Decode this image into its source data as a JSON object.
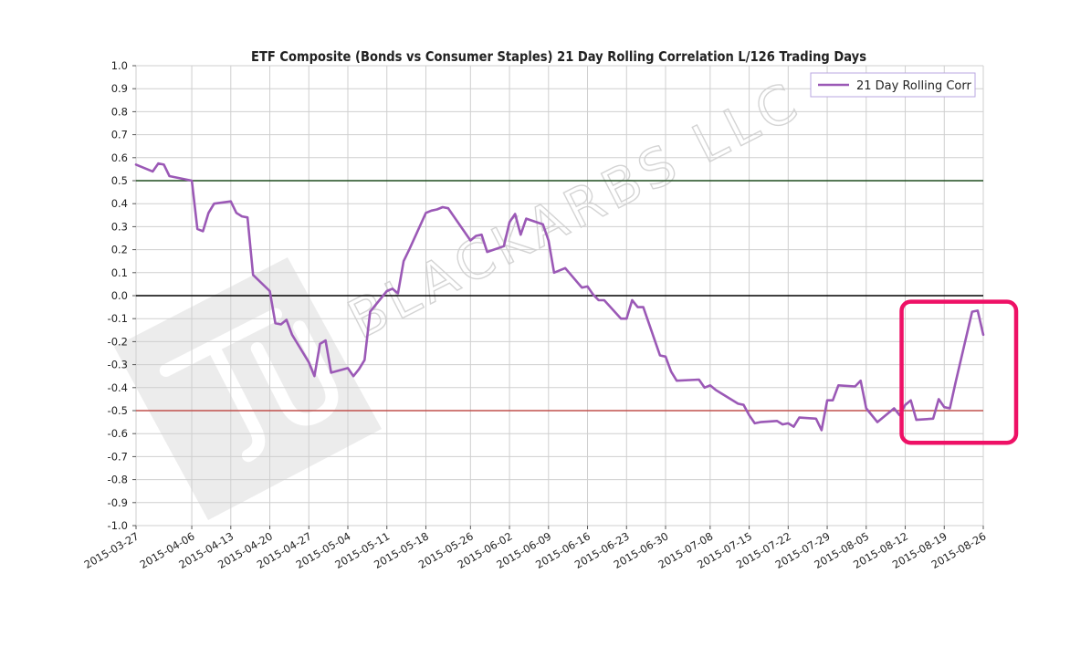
{
  "chart_data": {
    "type": "line",
    "title": "ETF Composite (Bonds vs Consumer Staples) 21 Day Rolling Correlation L/126 Trading Days",
    "xlabel": "",
    "ylabel": "",
    "ylim": [
      -1.0,
      1.0
    ],
    "yticks": [
      "1.0",
      "0.9",
      "0.8",
      "0.7",
      "0.6",
      "0.5",
      "0.4",
      "0.3",
      "0.2",
      "0.1",
      "0.0",
      "-0.1",
      "-0.2",
      "-0.3",
      "-0.4",
      "-0.5",
      "-0.6",
      "-0.7",
      "-0.8",
      "-0.9",
      "-1.0"
    ],
    "xticks": [
      "2015-03-27",
      "2015-04-06",
      "2015-04-13",
      "2015-04-20",
      "2015-04-27",
      "2015-05-04",
      "2015-05-11",
      "2015-05-18",
      "2015-05-26",
      "2015-06-02",
      "2015-06-09",
      "2015-06-16",
      "2015-06-23",
      "2015-06-30",
      "2015-07-08",
      "2015-07-15",
      "2015-07-22",
      "2015-07-29",
      "2015-08-05",
      "2015-08-12",
      "2015-08-19",
      "2015-08-26"
    ],
    "grid": true,
    "legend": {
      "placement": "top-right",
      "entries": [
        "21 Day Rolling Corr"
      ]
    },
    "reference_lines": [
      {
        "y": 0.5,
        "color": "#1e4d1e"
      },
      {
        "y": 0.0,
        "color": "#000000"
      },
      {
        "y": -0.5,
        "color": "#c0504d"
      }
    ],
    "highlight": {
      "x_range": [
        "2015-08-12",
        "2015-08-26"
      ],
      "y_range": [
        -0.6,
        -0.05
      ],
      "color": "#ee1166"
    },
    "series": [
      {
        "name": "21 Day Rolling Corr",
        "color": "#9b59b6",
        "points": [
          [
            "2015-03-27",
            0.57
          ],
          [
            "2015-03-30",
            0.54
          ],
          [
            "2015-03-31",
            0.575
          ],
          [
            "2015-04-01",
            0.57
          ],
          [
            "2015-04-02",
            0.52
          ],
          [
            "2015-04-06",
            0.5
          ],
          [
            "2015-04-07",
            0.29
          ],
          [
            "2015-04-08",
            0.28
          ],
          [
            "2015-04-09",
            0.36
          ],
          [
            "2015-04-10",
            0.4
          ],
          [
            "2015-04-13",
            0.41
          ],
          [
            "2015-04-14",
            0.36
          ],
          [
            "2015-04-15",
            0.345
          ],
          [
            "2015-04-16",
            0.34
          ],
          [
            "2015-04-17",
            0.09
          ],
          [
            "2015-04-20",
            0.02
          ],
          [
            "2015-04-21",
            -0.12
          ],
          [
            "2015-04-22",
            -0.125
          ],
          [
            "2015-04-23",
            -0.105
          ],
          [
            "2015-04-24",
            -0.17
          ],
          [
            "2015-04-27",
            -0.29
          ],
          [
            "2015-04-28",
            -0.35
          ],
          [
            "2015-04-29",
            -0.21
          ],
          [
            "2015-04-30",
            -0.195
          ],
          [
            "2015-05-01",
            -0.335
          ],
          [
            "2015-05-04",
            -0.315
          ],
          [
            "2015-05-05",
            -0.35
          ],
          [
            "2015-05-06",
            -0.32
          ],
          [
            "2015-05-07",
            -0.28
          ],
          [
            "2015-05-08",
            -0.07
          ],
          [
            "2015-05-11",
            0.02
          ],
          [
            "2015-05-12",
            0.03
          ],
          [
            "2015-05-13",
            0.01
          ],
          [
            "2015-05-14",
            0.15
          ],
          [
            "2015-05-15",
            0.2
          ],
          [
            "2015-05-18",
            0.36
          ],
          [
            "2015-05-19",
            0.37
          ],
          [
            "2015-05-20",
            0.375
          ],
          [
            "2015-05-21",
            0.385
          ],
          [
            "2015-05-22",
            0.38
          ],
          [
            "2015-05-26",
            0.24
          ],
          [
            "2015-05-27",
            0.26
          ],
          [
            "2015-05-28",
            0.265
          ],
          [
            "2015-05-29",
            0.19
          ],
          [
            "2015-06-01",
            0.215
          ],
          [
            "2015-06-02",
            0.32
          ],
          [
            "2015-06-03",
            0.355
          ],
          [
            "2015-06-04",
            0.265
          ],
          [
            "2015-06-05",
            0.335
          ],
          [
            "2015-06-08",
            0.31
          ],
          [
            "2015-06-09",
            0.24
          ],
          [
            "2015-06-10",
            0.1
          ],
          [
            "2015-06-11",
            0.11
          ],
          [
            "2015-06-12",
            0.12
          ],
          [
            "2015-06-15",
            0.035
          ],
          [
            "2015-06-16",
            0.04
          ],
          [
            "2015-06-17",
            0.005
          ],
          [
            "2015-06-18",
            -0.02
          ],
          [
            "2015-06-19",
            -0.02
          ],
          [
            "2015-06-22",
            -0.1
          ],
          [
            "2015-06-23",
            -0.1
          ],
          [
            "2015-06-24",
            -0.02
          ],
          [
            "2015-06-25",
            -0.05
          ],
          [
            "2015-06-26",
            -0.05
          ],
          [
            "2015-06-29",
            -0.26
          ],
          [
            "2015-06-30",
            -0.265
          ],
          [
            "2015-07-01",
            -0.33
          ],
          [
            "2015-07-02",
            -0.37
          ],
          [
            "2015-07-06",
            -0.365
          ],
          [
            "2015-07-07",
            -0.4
          ],
          [
            "2015-07-08",
            -0.39
          ],
          [
            "2015-07-09",
            -0.41
          ],
          [
            "2015-07-10",
            -0.425
          ],
          [
            "2015-07-13",
            -0.47
          ],
          [
            "2015-07-14",
            -0.475
          ],
          [
            "2015-07-15",
            -0.52
          ],
          [
            "2015-07-16",
            -0.555
          ],
          [
            "2015-07-17",
            -0.55
          ],
          [
            "2015-07-20",
            -0.545
          ],
          [
            "2015-07-21",
            -0.56
          ],
          [
            "2015-07-22",
            -0.555
          ],
          [
            "2015-07-23",
            -0.57
          ],
          [
            "2015-07-24",
            -0.53
          ],
          [
            "2015-07-27",
            -0.535
          ],
          [
            "2015-07-28",
            -0.585
          ],
          [
            "2015-07-29",
            -0.455
          ],
          [
            "2015-07-30",
            -0.455
          ],
          [
            "2015-07-31",
            -0.39
          ],
          [
            "2015-08-03",
            -0.395
          ],
          [
            "2015-08-04",
            -0.37
          ],
          [
            "2015-08-05",
            -0.49
          ],
          [
            "2015-08-06",
            -0.52
          ],
          [
            "2015-08-07",
            -0.55
          ],
          [
            "2015-08-10",
            -0.49
          ],
          [
            "2015-08-11",
            -0.52
          ],
          [
            "2015-08-12",
            -0.475
          ],
          [
            "2015-08-13",
            -0.455
          ],
          [
            "2015-08-14",
            -0.54
          ],
          [
            "2015-08-17",
            -0.535
          ],
          [
            "2015-08-18",
            -0.45
          ],
          [
            "2015-08-19",
            -0.485
          ],
          [
            "2015-08-20",
            -0.49
          ],
          [
            "2015-08-21",
            -0.38
          ],
          [
            "2015-08-24",
            -0.07
          ],
          [
            "2015-08-25",
            -0.065
          ],
          [
            "2015-08-26",
            -0.17
          ]
        ]
      }
    ]
  },
  "watermark": {
    "text": "BLACKARBS LLC",
    "logo": "tj-logo"
  }
}
